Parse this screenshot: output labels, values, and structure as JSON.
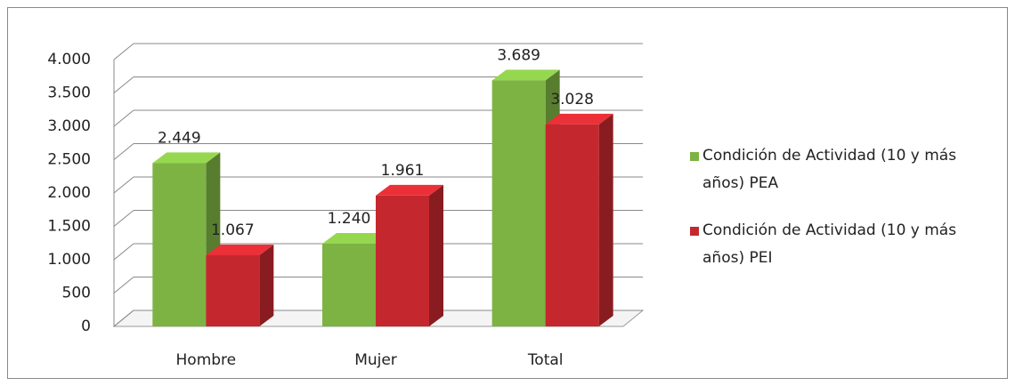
{
  "chart_data": {
    "type": "bar3d",
    "categories": [
      "Hombre",
      "Mujer",
      "Total"
    ],
    "series": [
      {
        "name": "Condición de Actividad (10 y más años) PEA",
        "color": "#7db343",
        "values": [
          2449,
          1240,
          3689
        ],
        "value_labels": [
          "2.449",
          "1.240",
          "3.689"
        ]
      },
      {
        "name": "Condición de Actividad (10 y más años) PEI",
        "color": "#c4282e",
        "values": [
          1067,
          1961,
          3028
        ],
        "value_labels": [
          "1.067",
          "1.961",
          "3.028"
        ]
      }
    ],
    "ylim": [
      0,
      4000
    ],
    "yticks": [
      0,
      500,
      {
        "value": 1000,
        "label": "1.000"
      },
      {
        "value": 1500,
        "label": "1.500"
      },
      {
        "value": 2000,
        "label": "2.000"
      },
      {
        "value": 2500,
        "label": "2.500"
      },
      {
        "value": 3000,
        "label": "3.000"
      },
      {
        "value": 3500,
        "label": "3.500"
      },
      {
        "value": 4000,
        "label": "4.000"
      }
    ],
    "grid": true,
    "legend": "right"
  }
}
